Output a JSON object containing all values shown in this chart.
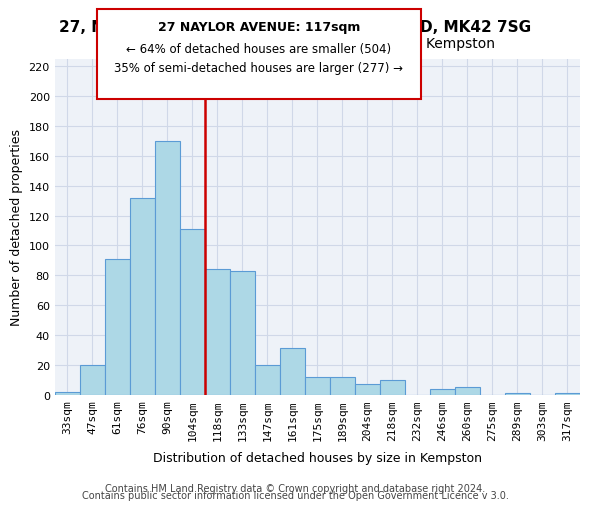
{
  "title": "27, NAYLOR AVENUE, KEMPSTON, BEDFORD, MK42 7SG",
  "subtitle": "Size of property relative to detached houses in Kempston",
  "xlabel": "Distribution of detached houses by size in Kempston",
  "ylabel": "Number of detached properties",
  "categories": [
    "33sqm",
    "47sqm",
    "61sqm",
    "76sqm",
    "90sqm",
    "104sqm",
    "118sqm",
    "133sqm",
    "147sqm",
    "161sqm",
    "175sqm",
    "189sqm",
    "204sqm",
    "218sqm",
    "232sqm",
    "246sqm",
    "260sqm",
    "275sqm",
    "289sqm",
    "303sqm",
    "317sqm"
  ],
  "values": [
    2,
    20,
    91,
    132,
    170,
    111,
    84,
    83,
    20,
    31,
    12,
    12,
    7,
    10,
    0,
    4,
    5,
    0,
    1,
    0,
    1
  ],
  "bar_color": "#add8e6",
  "bar_edge_color": "#5b9bd5",
  "vline_x": 6,
  "vline_color": "#cc0000",
  "vline_label": "118sqm",
  "annotation_title": "27 NAYLOR AVENUE: 117sqm",
  "annotation_line1": "← 64% of detached houses are smaller (504)",
  "annotation_line2": "35% of semi-detached houses are larger (277) →",
  "ylim": [
    0,
    225
  ],
  "yticks": [
    0,
    20,
    40,
    60,
    80,
    100,
    120,
    140,
    160,
    180,
    200,
    220
  ],
  "footer1": "Contains HM Land Registry data © Crown copyright and database right 2024.",
  "footer2": "Contains public sector information licensed under the Open Government Licence v 3.0.",
  "bg_color": "#ffffff",
  "grid_color": "#d0d8e8",
  "title_fontsize": 11,
  "subtitle_fontsize": 10,
  "axis_label_fontsize": 9,
  "tick_fontsize": 8,
  "footer_fontsize": 7
}
